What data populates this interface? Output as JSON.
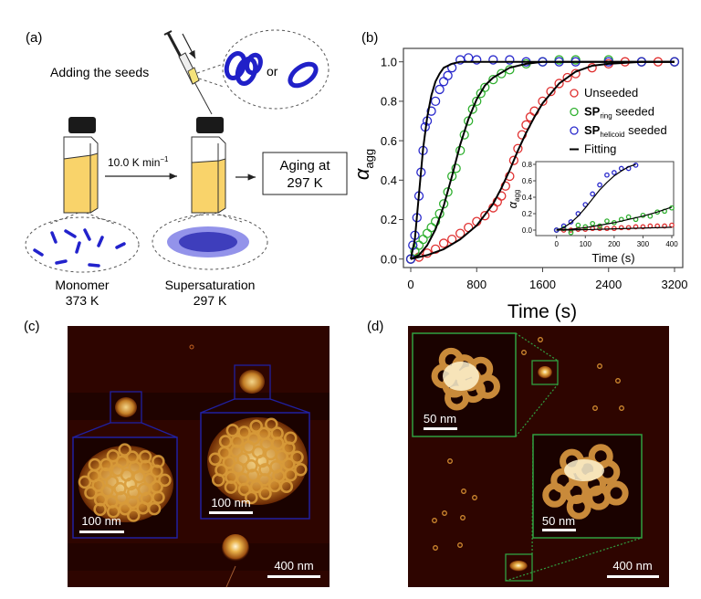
{
  "panel_a": {
    "label": "(a)",
    "seeds_text": "Adding the seeds",
    "or_text": "or",
    "rate_text": "10.0 K min",
    "rate_exp": "−1",
    "aging_line1": "Aging at",
    "aging_line2": "297 K",
    "monomer_label": "Monomer",
    "monomer_temp": "373 K",
    "super_label": "Supersaturation",
    "super_temp": "297 K",
    "colors": {
      "liquid": "#f9d36a",
      "molecule": "#2222cc",
      "cap": "#1a1a1a"
    }
  },
  "panel_b": {
    "label": "(b)"
  },
  "chart_data": {
    "type": "scatter",
    "xlabel": "Time (s)",
    "ylabel": "α",
    "ylabel_sub": "agg",
    "xlim": [
      0,
      3200
    ],
    "ylim": [
      -0.05,
      1.05
    ],
    "xticks": [
      "0",
      "800",
      "1600",
      "2400",
      "3200"
    ],
    "yticks": [
      "0.0",
      "0.2",
      "0.4",
      "0.6",
      "0.8",
      "1.0"
    ],
    "legend_position": "center-right",
    "legend": [
      {
        "pre": "Unseeded",
        "bold": "",
        "sub": "",
        "post": "",
        "color": "#e03030",
        "kind": "marker"
      },
      {
        "pre": "",
        "bold": "SP",
        "sub": "ring",
        "post": " seeded",
        "color": "#30b030",
        "kind": "marker"
      },
      {
        "pre": "",
        "bold": "SP",
        "sub": "helicoid",
        "post": " seeded",
        "color": "#2a2acc",
        "kind": "marker"
      },
      {
        "pre": "Fitting",
        "bold": "",
        "sub": "",
        "post": "",
        "color": "#000000",
        "kind": "line"
      }
    ],
    "series": [
      {
        "name": "Unseeded",
        "color": "#e03030",
        "x": [
          0,
          100,
          200,
          300,
          400,
          500,
          600,
          700,
          800,
          900,
          1000,
          1050,
          1100,
          1150,
          1200,
          1250,
          1300,
          1350,
          1400,
          1450,
          1500,
          1600,
          1700,
          1800,
          1900,
          2000,
          2200,
          2400,
          2600,
          2800,
          3000,
          3200
        ],
        "y": [
          0,
          0.01,
          0.03,
          0.05,
          0.08,
          0.1,
          0.13,
          0.16,
          0.19,
          0.22,
          0.26,
          0.29,
          0.32,
          0.37,
          0.42,
          0.5,
          0.56,
          0.63,
          0.68,
          0.72,
          0.75,
          0.8,
          0.85,
          0.89,
          0.92,
          0.94,
          0.97,
          0.99,
          1.0,
          1.0,
          1.0,
          1.0
        ]
      },
      {
        "name": "SPring seeded",
        "color": "#30b030",
        "x": [
          0,
          50,
          100,
          150,
          200,
          250,
          300,
          350,
          400,
          450,
          500,
          550,
          600,
          650,
          700,
          750,
          800,
          850,
          900,
          1000,
          1100,
          1200,
          1400,
          1600,
          1800,
          2000,
          2400,
          2800,
          3200
        ],
        "y": [
          0,
          0.04,
          0.07,
          0.1,
          0.13,
          0.16,
          0.19,
          0.23,
          0.28,
          0.34,
          0.42,
          0.46,
          0.55,
          0.63,
          0.7,
          0.76,
          0.8,
          0.84,
          0.87,
          0.91,
          0.94,
          0.96,
          0.99,
          1.0,
          1.01,
          1.01,
          1.01,
          1.0,
          1.0
        ]
      },
      {
        "name": "SPhelicoid seeded",
        "color": "#2a2acc",
        "x": [
          0,
          25,
          50,
          75,
          100,
          125,
          150,
          175,
          200,
          250,
          300,
          350,
          400,
          450,
          500,
          600,
          700,
          800,
          1000,
          1200,
          1400,
          1600,
          1800,
          2000,
          2400,
          2800,
          3200
        ],
        "y": [
          0,
          0.07,
          0.12,
          0.21,
          0.32,
          0.44,
          0.55,
          0.67,
          0.7,
          0.75,
          0.8,
          0.86,
          0.9,
          0.93,
          0.97,
          1.01,
          1.02,
          1.01,
          1.01,
          1.01,
          1.0,
          1.0,
          1.0,
          1.0,
          1.0,
          1.0,
          1.0
        ]
      }
    ],
    "fits": [
      {
        "color": "#000000",
        "x": [
          0,
          200,
          400,
          600,
          800,
          1000,
          1100,
          1200,
          1300,
          1400,
          1500,
          1600,
          1800,
          2000,
          2200,
          2400,
          2800,
          3200
        ],
        "y": [
          0,
          0.02,
          0.05,
          0.1,
          0.17,
          0.28,
          0.36,
          0.45,
          0.55,
          0.64,
          0.72,
          0.79,
          0.89,
          0.95,
          0.98,
          0.99,
          1.0,
          1.0
        ]
      },
      {
        "color": "#000000",
        "x": [
          0,
          100,
          200,
          300,
          400,
          500,
          600,
          700,
          800,
          900,
          1000,
          1200,
          1400,
          1600,
          2000,
          3200
        ],
        "y": [
          0,
          0.02,
          0.07,
          0.15,
          0.27,
          0.42,
          0.58,
          0.71,
          0.81,
          0.88,
          0.92,
          0.97,
          0.99,
          1.0,
          1.0,
          1.0
        ]
      },
      {
        "color": "#000000",
        "x": [
          0,
          50,
          100,
          150,
          200,
          250,
          300,
          350,
          400,
          500,
          600,
          800,
          3200
        ],
        "y": [
          0,
          0.1,
          0.33,
          0.56,
          0.72,
          0.83,
          0.9,
          0.94,
          0.97,
          0.99,
          1.0,
          1.0,
          1.0
        ]
      }
    ],
    "inset": {
      "xlabel": "Time (s)",
      "ylabel": "α",
      "ylabel_sub": "agg",
      "xlim": [
        0,
        400
      ],
      "ylim": [
        -0.05,
        0.85
      ],
      "xticks": [
        "0",
        "100",
        "200",
        "300",
        "400"
      ],
      "yticks": [
        "0.0",
        "0.2",
        "0.4",
        "0.6",
        "0.8"
      ],
      "series": [
        {
          "name": "Unseeded",
          "color": "#e03030",
          "x": [
            0,
            25,
            50,
            75,
            100,
            125,
            150,
            175,
            200,
            225,
            250,
            275,
            300,
            325,
            350,
            375,
            400
          ],
          "y": [
            0,
            0,
            0,
            0.01,
            0.01,
            0.02,
            0.02,
            0.02,
            0.02,
            0.03,
            0.03,
            0.04,
            0.04,
            0.05,
            0.05,
            0.05,
            0.06
          ]
        },
        {
          "name": "SPring seeded",
          "color": "#30b030",
          "x": [
            0,
            25,
            50,
            75,
            100,
            125,
            150,
            175,
            200,
            225,
            250,
            275,
            300,
            325,
            350,
            375,
            400
          ],
          "y": [
            0,
            0.02,
            -0.03,
            0.06,
            0.04,
            0.08,
            0.05,
            0.11,
            0.09,
            0.13,
            0.16,
            0.13,
            0.18,
            0.17,
            0.22,
            0.23,
            0.27
          ]
        },
        {
          "name": "SPhelicoid seeded",
          "color": "#2a2acc",
          "x": [
            0,
            25,
            50,
            75,
            100,
            125,
            150,
            175,
            200,
            225,
            250,
            275
          ],
          "y": [
            0,
            0.05,
            0.1,
            0.2,
            0.31,
            0.44,
            0.55,
            0.67,
            0.7,
            0.75,
            0.75,
            0.79
          ]
        }
      ],
      "fits": [
        {
          "x": [
            0,
            100,
            200,
            300,
            400
          ],
          "y": [
            0,
            0.005,
            0.015,
            0.025,
            0.035
          ]
        },
        {
          "x": [
            0,
            50,
            100,
            150,
            200,
            250,
            300,
            350,
            400
          ],
          "y": [
            0,
            0.01,
            0.03,
            0.06,
            0.09,
            0.13,
            0.17,
            0.22,
            0.28
          ]
        },
        {
          "x": [
            0,
            25,
            50,
            75,
            100,
            125,
            150,
            175,
            200,
            225,
            250,
            275
          ],
          "y": [
            0,
            0.03,
            0.09,
            0.17,
            0.27,
            0.38,
            0.49,
            0.58,
            0.66,
            0.72,
            0.77,
            0.8
          ]
        }
      ]
    }
  },
  "panel_c": {
    "label": "(c)",
    "scale_inset1": "100 nm",
    "scale_inset2": "100 nm",
    "scale_main": "400 nm",
    "box_color": "#2020a0"
  },
  "panel_d": {
    "label": "(d)",
    "scale_inset1": "50 nm",
    "scale_inset2": "50 nm",
    "scale_main": "400 nm",
    "box_color": "#30a040"
  }
}
